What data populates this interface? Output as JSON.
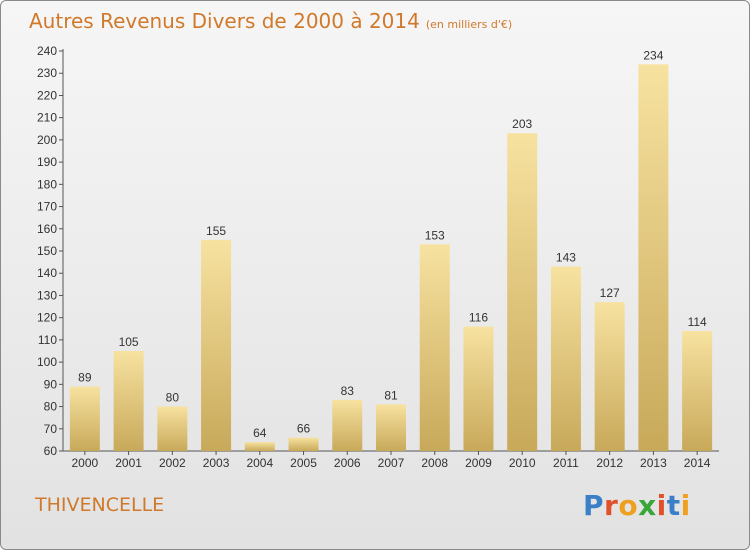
{
  "header": {
    "title": "Autres Revenus Divers de 2000 à 2014",
    "unit": "(en milliers d'€)"
  },
  "footer": {
    "place": "THIVENCELLE",
    "brand_letters": [
      "P",
      "r",
      "o",
      "x",
      "i",
      "t",
      "i"
    ],
    "brand_colors": [
      "#3a7fc8",
      "#e0502a",
      "#f0a020",
      "#3aa63a",
      "#e0502a",
      "#3a7fc8",
      "#f0a020"
    ]
  },
  "colors": {
    "bar_light": "#f7e2a0",
    "bar_dark": "#c8a95a",
    "accent": "#d0792a"
  },
  "chart_data": {
    "type": "bar",
    "title": "Autres Revenus Divers de 2000 à 2014",
    "xlabel": "",
    "ylabel": "",
    "categories": [
      "2000",
      "2001",
      "2002",
      "2003",
      "2004",
      "2005",
      "2006",
      "2007",
      "2008",
      "2009",
      "2010",
      "2011",
      "2012",
      "2013",
      "2014"
    ],
    "values": [
      89,
      105,
      80,
      155,
      64,
      66,
      83,
      81,
      153,
      116,
      203,
      143,
      127,
      234,
      114
    ],
    "ylim": [
      60,
      240
    ],
    "yticks": [
      60,
      70,
      80,
      90,
      100,
      110,
      120,
      130,
      140,
      150,
      160,
      170,
      180,
      190,
      200,
      210,
      220,
      230,
      240
    ],
    "grid": false,
    "legend": "none"
  }
}
